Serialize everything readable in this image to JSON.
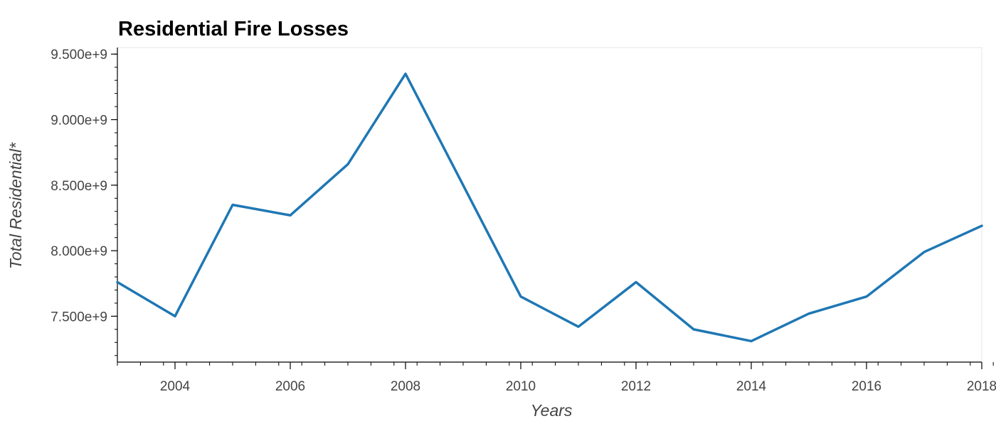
{
  "chart_data": {
    "type": "line",
    "title": "Residential Fire Losses",
    "xlabel": "Years",
    "ylabel": "Total Residential*",
    "xlim": [
      2003,
      2018
    ],
    "ylim": [
      7150000000,
      9550000000
    ],
    "x_ticks": [
      2004,
      2006,
      2008,
      2010,
      2012,
      2014,
      2016,
      2018
    ],
    "x_tick_labels": [
      "2004",
      "2006",
      "2008",
      "2010",
      "2012",
      "2014",
      "2016",
      "2018"
    ],
    "y_ticks": [
      7500000000,
      8000000000,
      8500000000,
      9000000000,
      9500000000
    ],
    "y_tick_labels": [
      "7.500e+9",
      "8.000e+9",
      "8.500e+9",
      "9.000e+9",
      "9.500e+9"
    ],
    "grid": false,
    "legend": "none",
    "line_color": "#1f77b4",
    "x": [
      2003,
      2004,
      2005,
      2006,
      2007,
      2008,
      2009,
      2010,
      2011,
      2012,
      2013,
      2014,
      2015,
      2016,
      2017,
      2018
    ],
    "series": [
      {
        "values": [
          7760000000,
          7500000000,
          8350000000,
          8270000000,
          8660000000,
          9350000000,
          8500000000,
          7650000000,
          7420000000,
          7760000000,
          7400000000,
          7310000000,
          7520000000,
          7650000000,
          7990000000,
          8190000000
        ]
      }
    ]
  }
}
